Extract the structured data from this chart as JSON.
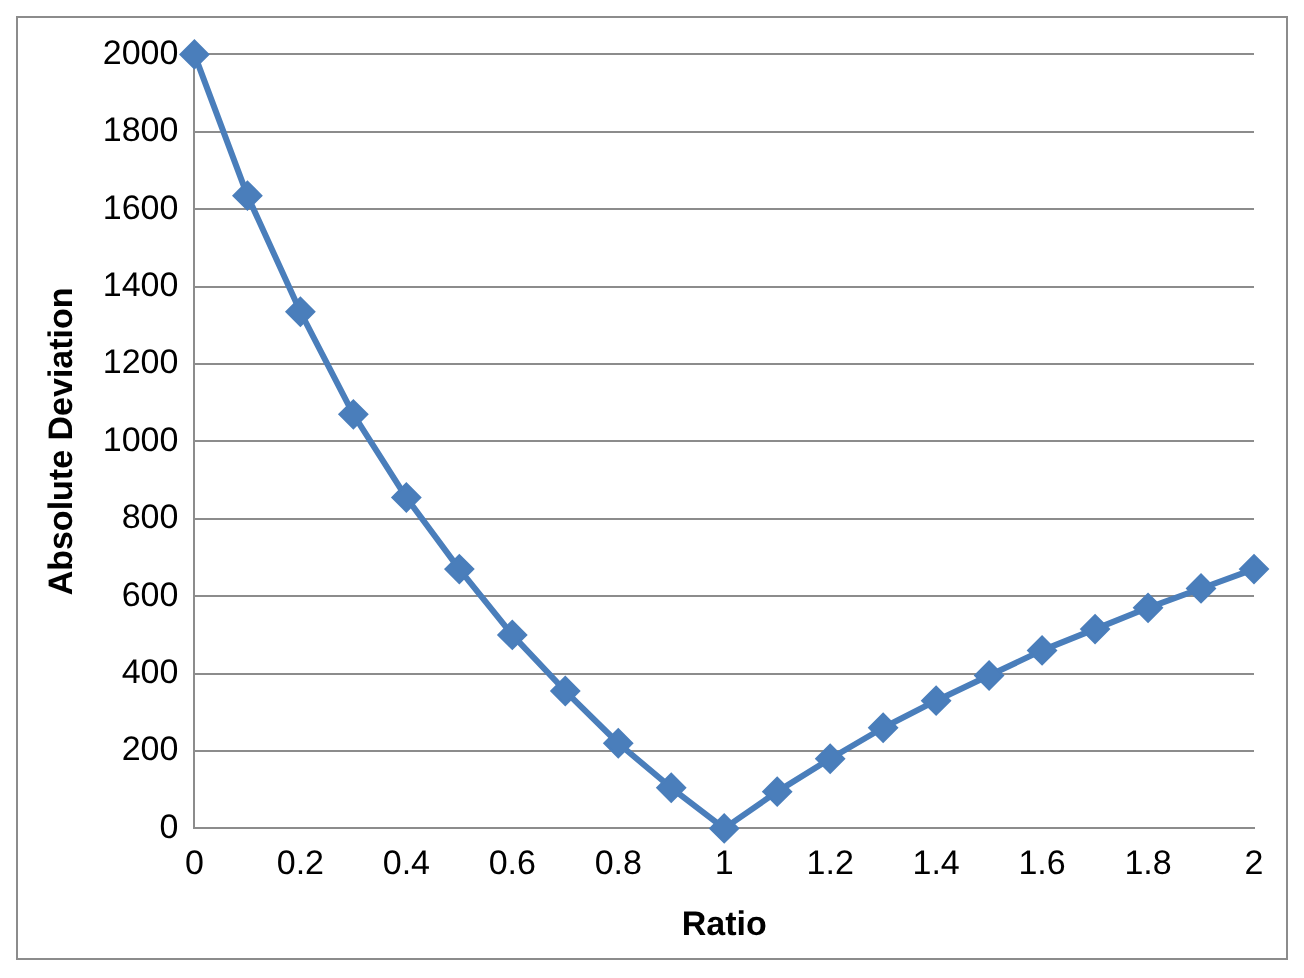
{
  "chart_data": {
    "type": "line",
    "xlabel": "Ratio",
    "ylabel": "Absolute Deviation",
    "x": [
      0,
      0.1,
      0.2,
      0.3,
      0.4,
      0.5,
      0.6,
      0.7,
      0.8,
      0.9,
      1,
      1.1,
      1.2,
      1.3,
      1.4,
      1.5,
      1.6,
      1.7,
      1.8,
      1.9,
      2
    ],
    "series": [
      {
        "color": "#4a7ebb",
        "values": [
          2000,
          1635,
          1335,
          1070,
          855,
          670,
          500,
          355,
          220,
          105,
          0,
          95,
          180,
          260,
          330,
          395,
          460,
          515,
          570,
          620,
          670
        ]
      }
    ],
    "xlim": [
      0,
      2
    ],
    "xticks": [
      0,
      0.2,
      0.4,
      0.6,
      0.8,
      1,
      1.2,
      1.4,
      1.6,
      1.8,
      2
    ],
    "ylim": [
      0,
      2000
    ],
    "yticks": [
      0,
      200,
      400,
      600,
      800,
      1000,
      1200,
      1400,
      1600,
      1800,
      2000
    ],
    "grid": "y",
    "legend": false,
    "marker": "diamond",
    "line_style": "solid"
  }
}
